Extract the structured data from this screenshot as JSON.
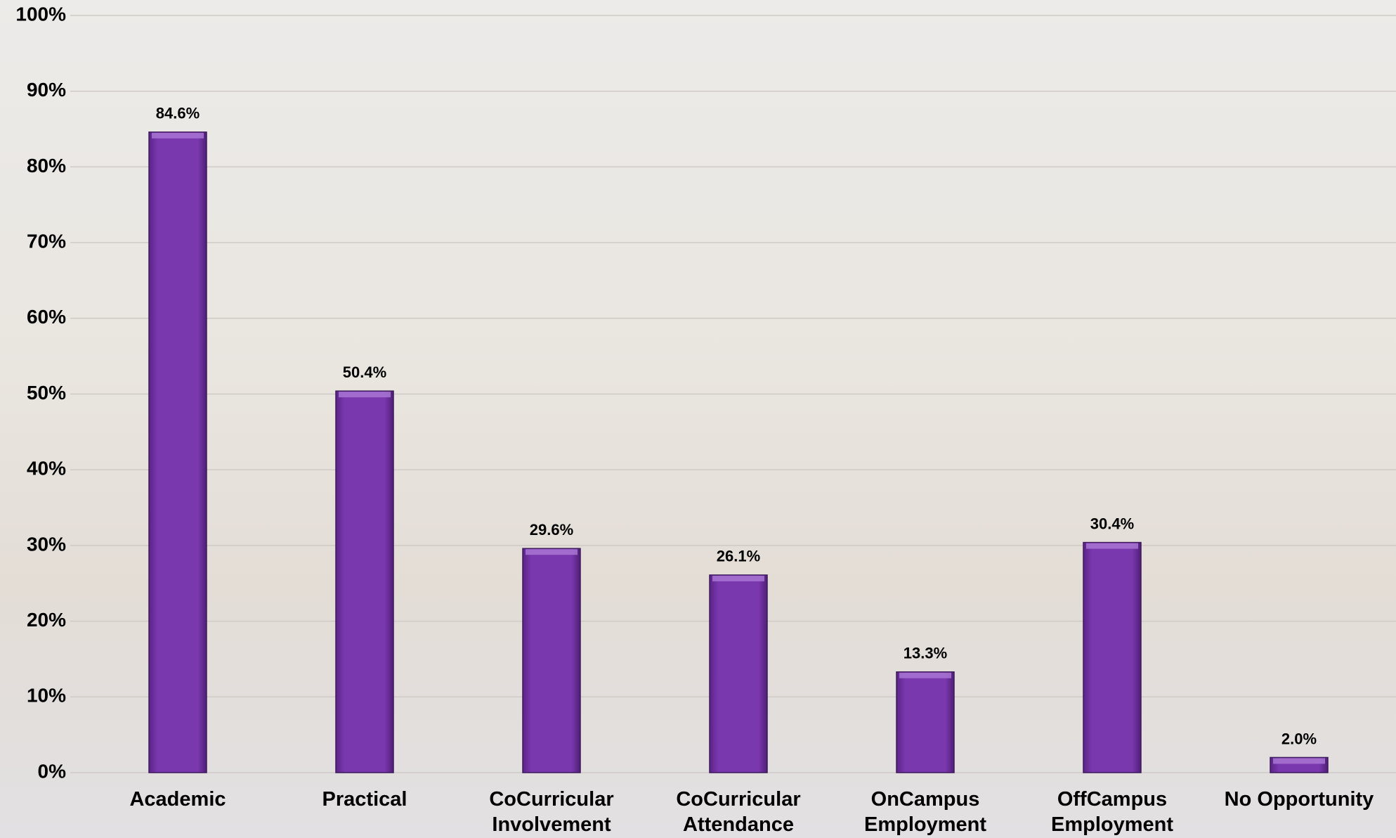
{
  "chart_data": {
    "type": "bar",
    "categories": [
      "Academic",
      "Practical",
      "CoCurricular Involvement",
      "CoCurricular Attendance",
      "OnCampus Employment",
      "OffCampus Employment",
      "No Opportunity"
    ],
    "values": [
      84.6,
      50.4,
      29.6,
      26.1,
      13.3,
      30.4,
      2.0
    ],
    "value_labels": [
      "84.6%",
      "50.4%",
      "29.6%",
      "26.1%",
      "13.3%",
      "30.4%",
      "2.0%"
    ],
    "color": "#7434a6",
    "ylim": [
      0,
      100
    ],
    "yticks": [
      {
        "value": 0,
        "label": "0%"
      },
      {
        "value": 10,
        "label": "10%"
      },
      {
        "value": 20,
        "label": "20%"
      },
      {
        "value": 30,
        "label": "30%"
      },
      {
        "value": 40,
        "label": "40%"
      },
      {
        "value": 50,
        "label": "50%"
      },
      {
        "value": 60,
        "label": "60%"
      },
      {
        "value": 70,
        "label": "70%"
      },
      {
        "value": 80,
        "label": "80%"
      },
      {
        "value": 90,
        "label": "90%"
      },
      {
        "value": 100,
        "label": "100%"
      }
    ],
    "grid": true
  }
}
